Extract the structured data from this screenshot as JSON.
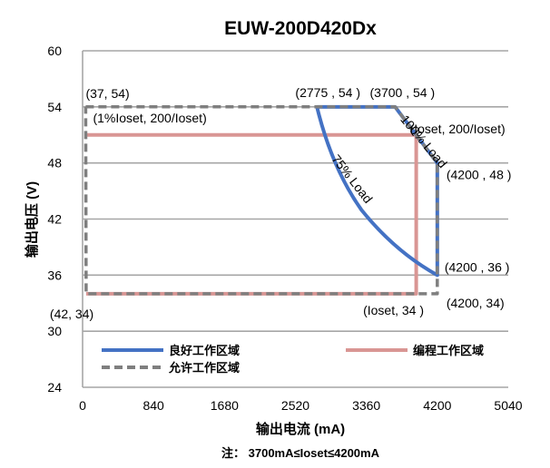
{
  "chart_data": {
    "type": "line",
    "title": "EUW-200D420Dx",
    "xlabel": "输出电流 (mA)",
    "ylabel": "输出电压 (V)",
    "note": "注： 3700mA≤Ioset≤4200mA",
    "xlim": [
      0,
      5040
    ],
    "ylim": [
      24,
      60
    ],
    "xticks": [
      "0",
      "840",
      "1680",
      "2520",
      "3360",
      "4200",
      "5040"
    ],
    "yticks": [
      "24",
      "30",
      "36",
      "42",
      "48",
      "54",
      "60"
    ],
    "grid": "horizontal",
    "legend_position": "bottom-inside",
    "series": [
      {
        "name": "良好工作区域",
        "color": "#4472c4",
        "style": "solid",
        "points": [
          [
            2775,
            54
          ],
          [
            3700,
            54
          ],
          [
            4200,
            48
          ],
          [
            4200,
            36
          ],
          [
            3700,
            38.5
          ],
          [
            3300,
            43
          ],
          [
            2775,
            54
          ]
        ]
      },
      {
        "name": "编程工作区域",
        "color": "#d99694",
        "style": "solid",
        "points": [
          [
            37,
            51
          ],
          [
            3950,
            51
          ],
          [
            3950,
            34
          ],
          [
            42,
            34
          ]
        ]
      },
      {
        "name": "允许工作区域",
        "color": "#7f7f7f",
        "style": "dashed",
        "points": [
          [
            37,
            54
          ],
          [
            2775,
            54
          ],
          [
            3700,
            54
          ],
          [
            4200,
            48
          ],
          [
            4200,
            34
          ],
          [
            42,
            34
          ],
          [
            37,
            54
          ]
        ]
      }
    ],
    "annotations": [
      {
        "text": "(37, 54)",
        "x": 37,
        "y": 54
      },
      {
        "text": "(2775 , 54 )",
        "x": 2775,
        "y": 54
      },
      {
        "text": "(3700 , 54 )",
        "x": 3700,
        "y": 54
      },
      {
        "text": "(1%Ioset, 200/Ioset)",
        "x": 37,
        "y": 51
      },
      {
        "text": "(Ioset, 200/Ioset)",
        "x": 3950,
        "y": 51
      },
      {
        "text": "100% Load",
        "x": 4000,
        "y": 50
      },
      {
        "text": "75% Load",
        "x": 3150,
        "y": 46
      },
      {
        "text": "(4200 , 48 )",
        "x": 4200,
        "y": 48
      },
      {
        "text": "(4200 , 36 )",
        "x": 4200,
        "y": 36
      },
      {
        "text": "(4200, 34)",
        "x": 4200,
        "y": 34
      },
      {
        "text": "(Ioset, 34 )",
        "x": 3950,
        "y": 34
      },
      {
        "text": "(42, 34)",
        "x": 42,
        "y": 34
      }
    ]
  }
}
